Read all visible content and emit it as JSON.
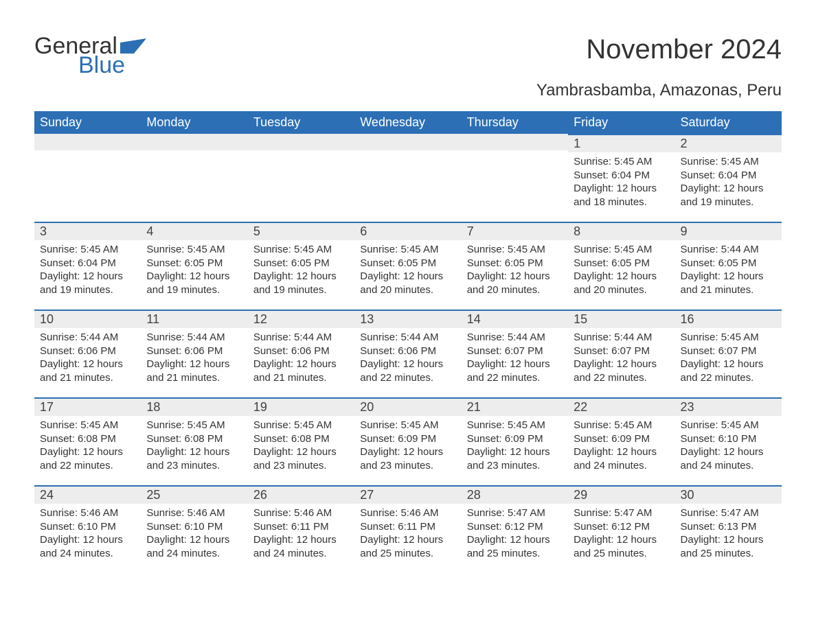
{
  "logo": {
    "word1": "General",
    "word2": "Blue",
    "flag_color": "#2c6fb5"
  },
  "title": "November 2024",
  "location": "Yambrasbamba, Amazonas, Peru",
  "colors": {
    "header_bg": "#2c6fb5",
    "header_text": "#ffffff",
    "daynum_bg": "#ededed",
    "daynum_border": "#2c6fb5",
    "body_text": "#333333",
    "page_bg": "#ffffff"
  },
  "typography": {
    "title_fontsize": 40,
    "location_fontsize": 24,
    "header_fontsize": 18,
    "daynum_fontsize": 18,
    "body_fontsize": 15,
    "logo_fontsize": 34
  },
  "weekdays": [
    "Sunday",
    "Monday",
    "Tuesday",
    "Wednesday",
    "Thursday",
    "Friday",
    "Saturday"
  ],
  "weeks": [
    [
      null,
      null,
      null,
      null,
      null,
      {
        "n": "1",
        "sunrise": "Sunrise: 5:45 AM",
        "sunset": "Sunset: 6:04 PM",
        "daylight": "Daylight: 12 hours and 18 minutes."
      },
      {
        "n": "2",
        "sunrise": "Sunrise: 5:45 AM",
        "sunset": "Sunset: 6:04 PM",
        "daylight": "Daylight: 12 hours and 19 minutes."
      }
    ],
    [
      {
        "n": "3",
        "sunrise": "Sunrise: 5:45 AM",
        "sunset": "Sunset: 6:04 PM",
        "daylight": "Daylight: 12 hours and 19 minutes."
      },
      {
        "n": "4",
        "sunrise": "Sunrise: 5:45 AM",
        "sunset": "Sunset: 6:05 PM",
        "daylight": "Daylight: 12 hours and 19 minutes."
      },
      {
        "n": "5",
        "sunrise": "Sunrise: 5:45 AM",
        "sunset": "Sunset: 6:05 PM",
        "daylight": "Daylight: 12 hours and 19 minutes."
      },
      {
        "n": "6",
        "sunrise": "Sunrise: 5:45 AM",
        "sunset": "Sunset: 6:05 PM",
        "daylight": "Daylight: 12 hours and 20 minutes."
      },
      {
        "n": "7",
        "sunrise": "Sunrise: 5:45 AM",
        "sunset": "Sunset: 6:05 PM",
        "daylight": "Daylight: 12 hours and 20 minutes."
      },
      {
        "n": "8",
        "sunrise": "Sunrise: 5:45 AM",
        "sunset": "Sunset: 6:05 PM",
        "daylight": "Daylight: 12 hours and 20 minutes."
      },
      {
        "n": "9",
        "sunrise": "Sunrise: 5:44 AM",
        "sunset": "Sunset: 6:05 PM",
        "daylight": "Daylight: 12 hours and 21 minutes."
      }
    ],
    [
      {
        "n": "10",
        "sunrise": "Sunrise: 5:44 AM",
        "sunset": "Sunset: 6:06 PM",
        "daylight": "Daylight: 12 hours and 21 minutes."
      },
      {
        "n": "11",
        "sunrise": "Sunrise: 5:44 AM",
        "sunset": "Sunset: 6:06 PM",
        "daylight": "Daylight: 12 hours and 21 minutes."
      },
      {
        "n": "12",
        "sunrise": "Sunrise: 5:44 AM",
        "sunset": "Sunset: 6:06 PM",
        "daylight": "Daylight: 12 hours and 21 minutes."
      },
      {
        "n": "13",
        "sunrise": "Sunrise: 5:44 AM",
        "sunset": "Sunset: 6:06 PM",
        "daylight": "Daylight: 12 hours and 22 minutes."
      },
      {
        "n": "14",
        "sunrise": "Sunrise: 5:44 AM",
        "sunset": "Sunset: 6:07 PM",
        "daylight": "Daylight: 12 hours and 22 minutes."
      },
      {
        "n": "15",
        "sunrise": "Sunrise: 5:44 AM",
        "sunset": "Sunset: 6:07 PM",
        "daylight": "Daylight: 12 hours and 22 minutes."
      },
      {
        "n": "16",
        "sunrise": "Sunrise: 5:45 AM",
        "sunset": "Sunset: 6:07 PM",
        "daylight": "Daylight: 12 hours and 22 minutes."
      }
    ],
    [
      {
        "n": "17",
        "sunrise": "Sunrise: 5:45 AM",
        "sunset": "Sunset: 6:08 PM",
        "daylight": "Daylight: 12 hours and 22 minutes."
      },
      {
        "n": "18",
        "sunrise": "Sunrise: 5:45 AM",
        "sunset": "Sunset: 6:08 PM",
        "daylight": "Daylight: 12 hours and 23 minutes."
      },
      {
        "n": "19",
        "sunrise": "Sunrise: 5:45 AM",
        "sunset": "Sunset: 6:08 PM",
        "daylight": "Daylight: 12 hours and 23 minutes."
      },
      {
        "n": "20",
        "sunrise": "Sunrise: 5:45 AM",
        "sunset": "Sunset: 6:09 PM",
        "daylight": "Daylight: 12 hours and 23 minutes."
      },
      {
        "n": "21",
        "sunrise": "Sunrise: 5:45 AM",
        "sunset": "Sunset: 6:09 PM",
        "daylight": "Daylight: 12 hours and 23 minutes."
      },
      {
        "n": "22",
        "sunrise": "Sunrise: 5:45 AM",
        "sunset": "Sunset: 6:09 PM",
        "daylight": "Daylight: 12 hours and 24 minutes."
      },
      {
        "n": "23",
        "sunrise": "Sunrise: 5:45 AM",
        "sunset": "Sunset: 6:10 PM",
        "daylight": "Daylight: 12 hours and 24 minutes."
      }
    ],
    [
      {
        "n": "24",
        "sunrise": "Sunrise: 5:46 AM",
        "sunset": "Sunset: 6:10 PM",
        "daylight": "Daylight: 12 hours and 24 minutes."
      },
      {
        "n": "25",
        "sunrise": "Sunrise: 5:46 AM",
        "sunset": "Sunset: 6:10 PM",
        "daylight": "Daylight: 12 hours and 24 minutes."
      },
      {
        "n": "26",
        "sunrise": "Sunrise: 5:46 AM",
        "sunset": "Sunset: 6:11 PM",
        "daylight": "Daylight: 12 hours and 24 minutes."
      },
      {
        "n": "27",
        "sunrise": "Sunrise: 5:46 AM",
        "sunset": "Sunset: 6:11 PM",
        "daylight": "Daylight: 12 hours and 25 minutes."
      },
      {
        "n": "28",
        "sunrise": "Sunrise: 5:47 AM",
        "sunset": "Sunset: 6:12 PM",
        "daylight": "Daylight: 12 hours and 25 minutes."
      },
      {
        "n": "29",
        "sunrise": "Sunrise: 5:47 AM",
        "sunset": "Sunset: 6:12 PM",
        "daylight": "Daylight: 12 hours and 25 minutes."
      },
      {
        "n": "30",
        "sunrise": "Sunrise: 5:47 AM",
        "sunset": "Sunset: 6:13 PM",
        "daylight": "Daylight: 12 hours and 25 minutes."
      }
    ]
  ]
}
